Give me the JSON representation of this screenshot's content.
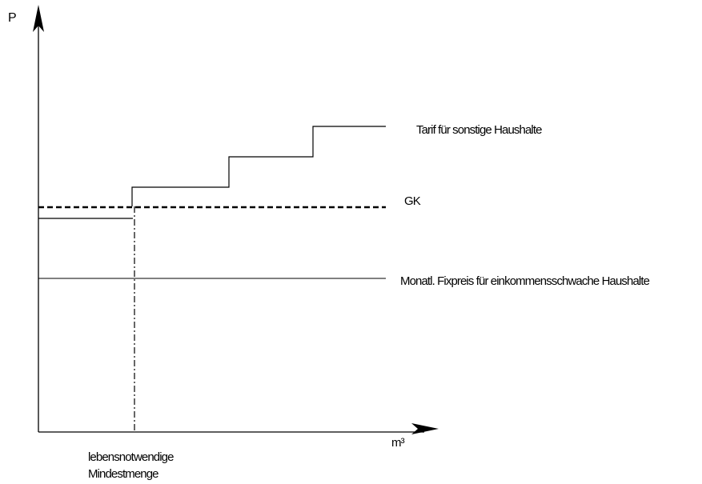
{
  "diagram": {
    "y_axis_label": "P",
    "x_axis_label": "m³",
    "label_tarif": "Tarif für sonstige Haushalte",
    "label_gk": "GK",
    "label_fixpreis": "Monatl. Fixpreis für einkommensschwache Haushalte",
    "label_mindestmenge_line1": "lebensnotwendige",
    "label_mindestmenge_line2": "Mindestmenge"
  }
}
